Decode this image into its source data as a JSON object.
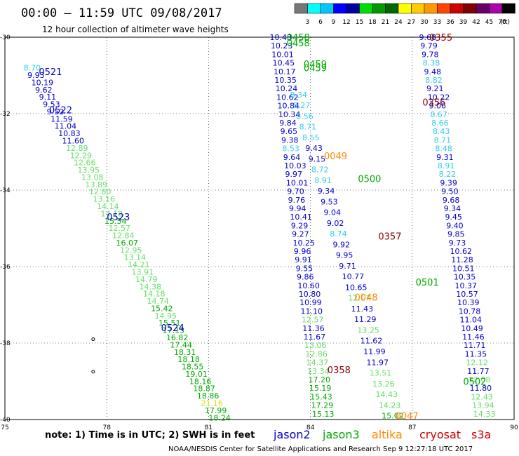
{
  "header": {
    "title": "00:00 – 11:59 UTC 09/08/2017",
    "subtitle": "12 hour collection of altimeter wave heights"
  },
  "colorbar": {
    "unit_label": "(ft)",
    "ticks": [
      "3",
      "6",
      "9",
      "12",
      "15",
      "18",
      "21",
      "24",
      "27",
      "30",
      "33",
      "36",
      "39",
      "42",
      "45",
      "70"
    ],
    "colors": [
      "#777777",
      "#00ffff",
      "#00c8ff",
      "#0000ff",
      "#0000a0",
      "#00dd00",
      "#009900",
      "#006600",
      "#ffff00",
      "#ffcc00",
      "#ff9900",
      "#ff4400",
      "#cc0000",
      "#800000",
      "#660066",
      "#aa00aa",
      "#000000"
    ]
  },
  "footer": {
    "note": "note: 1) Time is in UTC; 2) SWH is in feet",
    "legend": [
      {
        "name": "jason2",
        "color": "#0000cc"
      },
      {
        "name": "jason3",
        "color": "#00aa00"
      },
      {
        "name": "altika",
        "color": "#ff8800"
      },
      {
        "name": "cryosat",
        "color": "#cc0000"
      },
      {
        "name": "s3a",
        "color": "#cc0000"
      }
    ],
    "credit": "NOAA/NESDIS Center for Satellite Applications and Research   Sep  9 12:27:18 UTC 2017"
  },
  "chart_data": {
    "type": "scatter",
    "grid": true,
    "xlim": [
      75,
      90
    ],
    "ylim": [
      -40,
      -30
    ],
    "x_ticks": [
      "75",
      "78",
      "81",
      "84",
      "87",
      "90"
    ],
    "y_ticks": [
      "-30",
      "-32",
      "-34",
      "-36",
      "-38",
      "-40"
    ],
    "level_colors": {
      "cyan": "#33ccee",
      "blue": "#0000cc",
      "light_green": "#66dd66",
      "green": "#00aa00",
      "yellow": "#dddd00",
      "orange": "#ff8800",
      "maroon": "#8b0000"
    },
    "pass_labels": [
      {
        "text": "0521",
        "x": 76.0,
        "y": -30.9,
        "color": "#0000cc"
      },
      {
        "text": "0522",
        "x": 76.3,
        "y": -31.9,
        "color": "#0000cc"
      },
      {
        "text": "0523",
        "x": 78.0,
        "y": -34.7,
        "color": "#0000cc"
      },
      {
        "text": "0524",
        "x": 79.6,
        "y": -37.6,
        "color": "#0000cc"
      },
      {
        "text": "0458",
        "x": 83.3,
        "y": -30.0,
        "color": "#00aa00"
      },
      {
        "text": "0458",
        "x": 83.3,
        "y": -30.15,
        "color": "#00aa00"
      },
      {
        "text": "0459",
        "x": 83.8,
        "y": -30.7,
        "color": "#00aa00"
      },
      {
        "text": "0459",
        "x": 83.8,
        "y": -30.8,
        "color": "#00aa00"
      },
      {
        "text": "0500",
        "x": 85.4,
        "y": -33.7,
        "color": "#00aa00"
      },
      {
        "text": "0501",
        "x": 87.1,
        "y": -36.4,
        "color": "#00aa00"
      },
      {
        "text": "0502",
        "x": 88.5,
        "y": -39.0,
        "color": "#00aa00"
      },
      {
        "text": "0049",
        "x": 84.4,
        "y": -33.1,
        "color": "#ff8800"
      },
      {
        "text": "0048",
        "x": 85.3,
        "y": -36.8,
        "color": "#ff8800"
      },
      {
        "text": "0047",
        "x": 86.5,
        "y": -39.9,
        "color": "#ff8800"
      },
      {
        "text": "0355",
        "x": 87.5,
        "y": -30.0,
        "color": "#8b0000"
      },
      {
        "text": "0356",
        "x": 87.3,
        "y": -31.7,
        "color": "#8b0000"
      },
      {
        "text": "0357",
        "x": 86.0,
        "y": -35.2,
        "color": "#8b0000"
      },
      {
        "text": "0358",
        "x": 84.5,
        "y": -38.7,
        "color": "#8b0000"
      }
    ],
    "tracks": [
      {
        "pass": "0521-0524",
        "x0": 75.55,
        "x1": 81.0,
        "y0": -30.8,
        "y1": -39.95,
        "values": [
          {
            "v": "8.70",
            "c": "cyan"
          },
          {
            "v": "9.93",
            "c": "blue"
          },
          {
            "v": "10.19",
            "c": "blue"
          },
          {
            "v": "9.62",
            "c": "blue"
          },
          {
            "v": "9.11",
            "c": "blue"
          },
          {
            "v": "9.53",
            "c": "blue"
          },
          {
            "v": "9.52",
            "c": "blue"
          },
          {
            "v": "11.59",
            "c": "blue"
          },
          {
            "v": "11.04",
            "c": "blue"
          },
          {
            "v": "10.83",
            "c": "blue"
          },
          {
            "v": "11.60",
            "c": "blue"
          },
          {
            "v": "12.89",
            "c": "light_green"
          },
          {
            "v": "12.29",
            "c": "light_green"
          },
          {
            "v": "12.66",
            "c": "light_green"
          },
          {
            "v": "13.95",
            "c": "light_green"
          },
          {
            "v": "13.08",
            "c": "light_green"
          },
          {
            "v": "13.89",
            "c": "light_green"
          },
          {
            "v": "12.80",
            "c": "light_green"
          },
          {
            "v": "13.16",
            "c": "light_green"
          },
          {
            "v": "14.14",
            "c": "light_green"
          },
          {
            "v": "14.18",
            "c": "light_green"
          },
          {
            "v": "15.54",
            "c": "green"
          },
          {
            "v": "12.57",
            "c": "light_green"
          },
          {
            "v": "12.84",
            "c": "light_green"
          },
          {
            "v": "16.07",
            "c": "green"
          },
          {
            "v": "12.95",
            "c": "light_green"
          },
          {
            "v": "13.14",
            "c": "light_green"
          },
          {
            "v": "14.21",
            "c": "light_green"
          },
          {
            "v": "13.91",
            "c": "light_green"
          },
          {
            "v": "14.79",
            "c": "light_green"
          },
          {
            "v": "14.38",
            "c": "light_green"
          },
          {
            "v": "14.18",
            "c": "light_green"
          },
          {
            "v": "14.74",
            "c": "light_green"
          },
          {
            "v": "15.42",
            "c": "green"
          },
          {
            "v": "14.95",
            "c": "light_green"
          },
          {
            "v": "15.51",
            "c": "green"
          },
          {
            "v": "17.13",
            "c": "green"
          },
          {
            "v": "16.82",
            "c": "green"
          },
          {
            "v": "17.44",
            "c": "green"
          },
          {
            "v": "18.31",
            "c": "green"
          },
          {
            "v": "18.18",
            "c": "green"
          },
          {
            "v": "18.55",
            "c": "green"
          },
          {
            "v": "19.01",
            "c": "green"
          },
          {
            "v": "18.16",
            "c": "green"
          },
          {
            "v": "18.87",
            "c": "green"
          },
          {
            "v": "18.86",
            "c": "green"
          },
          {
            "v": "21.16",
            "c": "yellow"
          },
          {
            "v": "17.99",
            "c": "green"
          },
          {
            "v": "18.24",
            "c": "green"
          }
        ]
      },
      {
        "pass": "0458-0358",
        "x0": 82.8,
        "x1": 84.05,
        "y0": -30.0,
        "y1": -39.85,
        "values": [
          {
            "v": "10.43",
            "c": "blue"
          },
          {
            "v": "10.23",
            "c": "blue"
          },
          {
            "v": "10.01",
            "c": "blue"
          },
          {
            "v": "10.45",
            "c": "blue"
          },
          {
            "v": "10.17",
            "c": "blue"
          },
          {
            "v": "10.35",
            "c": "blue"
          },
          {
            "v": "10.24",
            "c": "blue"
          },
          {
            "v": "10.62",
            "c": "blue"
          },
          {
            "v": "10.84",
            "c": "blue"
          },
          {
            "v": "10.34",
            "c": "blue"
          },
          {
            "v": "9.84",
            "c": "blue"
          },
          {
            "v": "9.65",
            "c": "blue"
          },
          {
            "v": "9.38",
            "c": "blue"
          },
          {
            "v": "8.53",
            "c": "cyan"
          },
          {
            "v": "9.64",
            "c": "blue"
          },
          {
            "v": "10.03",
            "c": "blue"
          },
          {
            "v": "9.97",
            "c": "blue"
          },
          {
            "v": "10.01",
            "c": "blue"
          },
          {
            "v": "9.70",
            "c": "blue"
          },
          {
            "v": "9.76",
            "c": "blue"
          },
          {
            "v": "9.94",
            "c": "blue"
          },
          {
            "v": "10.41",
            "c": "blue"
          },
          {
            "v": "9.29",
            "c": "blue"
          },
          {
            "v": "9.27",
            "c": "blue"
          },
          {
            "v": "10.25",
            "c": "blue"
          },
          {
            "v": "9.96",
            "c": "blue"
          },
          {
            "v": "9.91",
            "c": "blue"
          },
          {
            "v": "9.55",
            "c": "blue"
          },
          {
            "v": "9.86",
            "c": "blue"
          },
          {
            "v": "10.60",
            "c": "blue"
          },
          {
            "v": "10.80",
            "c": "blue"
          },
          {
            "v": "10.99",
            "c": "blue"
          },
          {
            "v": "11.10",
            "c": "blue"
          },
          {
            "v": "12.57",
            "c": "light_green"
          },
          {
            "v": "11.36",
            "c": "blue"
          },
          {
            "v": "11.67",
            "c": "blue"
          },
          {
            "v": "13.06",
            "c": "light_green"
          },
          {
            "v": "12.86",
            "c": "light_green"
          },
          {
            "v": "14.37",
            "c": "light_green"
          },
          {
            "v": "13.34",
            "c": "light_green"
          },
          {
            "v": "17.20",
            "c": "green"
          },
          {
            "v": "15.19",
            "c": "green"
          },
          {
            "v": "15.43",
            "c": "green"
          },
          {
            "v": "17.29",
            "c": "green"
          },
          {
            "v": "15.13",
            "c": "green"
          }
        ]
      },
      {
        "pass": "0049-0048",
        "x0": 83.4,
        "x1": 86.1,
        "y0": -31.5,
        "y1": -39.9,
        "values": [
          {
            "v": "8.34",
            "c": "cyan"
          },
          {
            "v": "8.27",
            "c": "cyan"
          },
          {
            "v": "8.56",
            "c": "cyan"
          },
          {
            "v": "8.71",
            "c": "cyan"
          },
          {
            "v": "8.55",
            "c": "cyan"
          },
          {
            "v": "9.43",
            "c": "blue"
          },
          {
            "v": "9.15",
            "c": "blue"
          },
          {
            "v": "8.72",
            "c": "cyan"
          },
          {
            "v": "8.91",
            "c": "cyan"
          },
          {
            "v": "9.34",
            "c": "blue"
          },
          {
            "v": "9.53",
            "c": "blue"
          },
          {
            "v": "9.04",
            "c": "blue"
          },
          {
            "v": "9.02",
            "c": "blue"
          },
          {
            "v": "8.74",
            "c": "cyan"
          },
          {
            "v": "9.92",
            "c": "blue"
          },
          {
            "v": "9.95",
            "c": "blue"
          },
          {
            "v": "9.71",
            "c": "blue"
          },
          {
            "v": "10.77",
            "c": "blue"
          },
          {
            "v": "10.65",
            "c": "blue"
          },
          {
            "v": "12.17",
            "c": "light_green"
          },
          {
            "v": "11.43",
            "c": "blue"
          },
          {
            "v": "11.29",
            "c": "blue"
          },
          {
            "v": "13.25",
            "c": "light_green"
          },
          {
            "v": "11.62",
            "c": "blue"
          },
          {
            "v": "11.99",
            "c": "blue"
          },
          {
            "v": "11.97",
            "c": "blue"
          },
          {
            "v": "13.51",
            "c": "light_green"
          },
          {
            "v": "13.26",
            "c": "light_green"
          },
          {
            "v": "14.43",
            "c": "light_green"
          },
          {
            "v": "14.23",
            "c": "light_green"
          },
          {
            "v": "15.02",
            "c": "green"
          }
        ]
      },
      {
        "pass": "0355-0502",
        "x0": 87.2,
        "x1": 88.8,
        "y0": -30.0,
        "y1": -39.85,
        "values": [
          {
            "v": "9.68",
            "c": "blue"
          },
          {
            "v": "9.79",
            "c": "blue"
          },
          {
            "v": "9.78",
            "c": "blue"
          },
          {
            "v": "8.38",
            "c": "cyan"
          },
          {
            "v": "9.48",
            "c": "blue"
          },
          {
            "v": "8.82",
            "c": "cyan"
          },
          {
            "v": "9.21",
            "c": "blue"
          },
          {
            "v": "10.22",
            "c": "blue"
          },
          {
            "v": "9.06",
            "c": "blue"
          },
          {
            "v": "8.67",
            "c": "cyan"
          },
          {
            "v": "8.66",
            "c": "cyan"
          },
          {
            "v": "8.43",
            "c": "cyan"
          },
          {
            "v": "8.71",
            "c": "cyan"
          },
          {
            "v": "8.48",
            "c": "cyan"
          },
          {
            "v": "9.31",
            "c": "blue"
          },
          {
            "v": "8.91",
            "c": "cyan"
          },
          {
            "v": "8.22",
            "c": "cyan"
          },
          {
            "v": "9.39",
            "c": "blue"
          },
          {
            "v": "9.50",
            "c": "blue"
          },
          {
            "v": "9.68",
            "c": "blue"
          },
          {
            "v": "9.34",
            "c": "blue"
          },
          {
            "v": "9.45",
            "c": "blue"
          },
          {
            "v": "9.40",
            "c": "blue"
          },
          {
            "v": "9.85",
            "c": "blue"
          },
          {
            "v": "9.73",
            "c": "blue"
          },
          {
            "v": "10.62",
            "c": "blue"
          },
          {
            "v": "11.28",
            "c": "blue"
          },
          {
            "v": "10.51",
            "c": "blue"
          },
          {
            "v": "10.35",
            "c": "blue"
          },
          {
            "v": "10.37",
            "c": "blue"
          },
          {
            "v": "10.57",
            "c": "blue"
          },
          {
            "v": "10.39",
            "c": "blue"
          },
          {
            "v": "10.78",
            "c": "blue"
          },
          {
            "v": "11.04",
            "c": "blue"
          },
          {
            "v": "10.49",
            "c": "blue"
          },
          {
            "v": "11.46",
            "c": "blue"
          },
          {
            "v": "11.71",
            "c": "blue"
          },
          {
            "v": "11.35",
            "c": "blue"
          },
          {
            "v": "12.12",
            "c": "light_green"
          },
          {
            "v": "11.77",
            "c": "blue"
          },
          {
            "v": "12.08",
            "c": "light_green"
          },
          {
            "v": "11.80",
            "c": "blue"
          },
          {
            "v": "12.43",
            "c": "light_green"
          },
          {
            "v": "13.94",
            "c": "light_green"
          },
          {
            "v": "14.33",
            "c": "light_green"
          }
        ]
      }
    ],
    "small_marks": [
      {
        "x": 77.6,
        "y": -37.9
      },
      {
        "x": 77.6,
        "y": -38.75
      }
    ]
  }
}
